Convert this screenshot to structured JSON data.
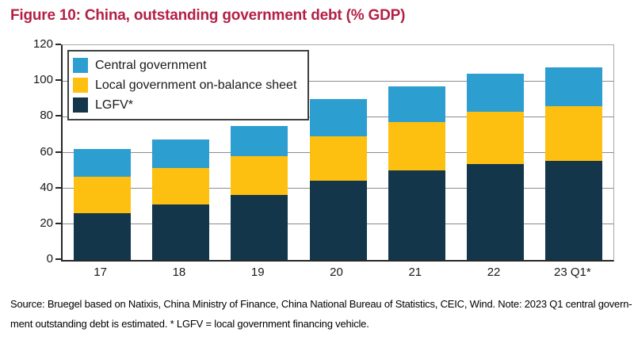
{
  "title": "Figure 10: China, outstanding government debt (% GDP)",
  "colors": {
    "title_red": "#b42045",
    "central_blue": "#2d9ed0",
    "local_yellow": "#fdc010",
    "lgfv_navy": "#13364a",
    "gridline_gray": "#8c8c8c",
    "axis_dark": "#262626",
    "plot_border_gray": "#a6a6a6",
    "text_black": "#1a1a1a"
  },
  "legend": {
    "items": [
      {
        "label": "Central government",
        "color": "#2d9ed0"
      },
      {
        "label": "Local government on-balance sheet",
        "color": "#fdc010"
      },
      {
        "label": "LGFV*",
        "color": "#13364a"
      }
    ]
  },
  "chart_data": {
    "type": "bar",
    "stacked": true,
    "title": "Figure 10: China, outstanding government debt (% GDP)",
    "xlabel": "",
    "ylabel": "% GDP",
    "categories": [
      "17",
      "18",
      "19",
      "20",
      "21",
      "22",
      "23 Q1*"
    ],
    "series": [
      {
        "name": "LGFV*",
        "color": "#13364a",
        "values": [
          26,
          31,
          36.5,
          44.5,
          50,
          53.5,
          55.5
        ]
      },
      {
        "name": "Local government on-balance sheet",
        "color": "#fdc010",
        "values": [
          20.5,
          20.5,
          21.5,
          24.5,
          27,
          29.5,
          30.5
        ]
      },
      {
        "name": "Central government",
        "color": "#2d9ed0",
        "values": [
          15.5,
          16,
          17,
          21,
          20,
          21,
          21.5
        ]
      }
    ],
    "totals": [
      62,
      67.5,
      75,
      90,
      97,
      104,
      107.5
    ],
    "ylim": [
      0,
      120
    ],
    "y_ticks": [
      0,
      20,
      40,
      60,
      80,
      100,
      120
    ],
    "grid": true,
    "legend_position": "upper-left-inside"
  },
  "footer": {
    "line1": "Source: Bruegel based on Natixis, China Ministry of Finance, China National Bureau of Statistics, CEIC, Wind. Note: 2023 Q1 central govern-",
    "line2": "ment outstanding debt is estimated. * LGFV = local government financing vehicle."
  }
}
